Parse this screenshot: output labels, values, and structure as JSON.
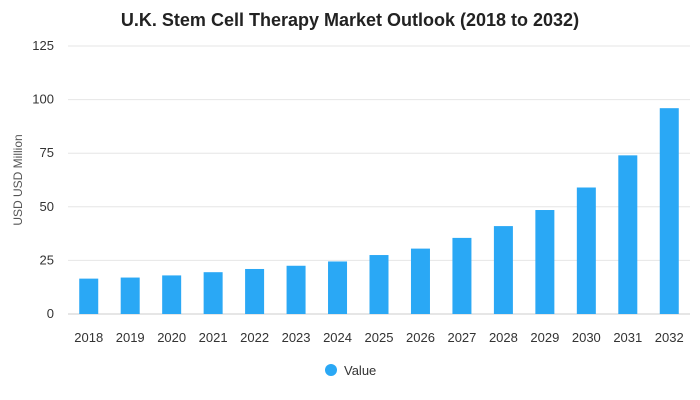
{
  "chart_data": {
    "type": "bar",
    "title": "U.K. Stem Cell Therapy Market Outlook (2018 to 2032)",
    "xlabel": "",
    "ylabel": "USD USD Million",
    "categories": [
      "2018",
      "2019",
      "2020",
      "2021",
      "2022",
      "2023",
      "2024",
      "2025",
      "2026",
      "2027",
      "2028",
      "2029",
      "2030",
      "2031",
      "2032"
    ],
    "series": [
      {
        "name": "Value",
        "color": "#2aa8f5",
        "values": [
          16.5,
          17,
          18,
          19.5,
          21,
          22.5,
          24.5,
          27.5,
          30.5,
          35.5,
          41,
          48.5,
          59,
          74,
          96
        ]
      }
    ],
    "ylim": [
      0,
      125
    ],
    "yticks": [
      0,
      25,
      50,
      75,
      100,
      125
    ],
    "grid": true,
    "legend": {
      "position": "bottom",
      "entries": [
        "Value"
      ]
    }
  }
}
